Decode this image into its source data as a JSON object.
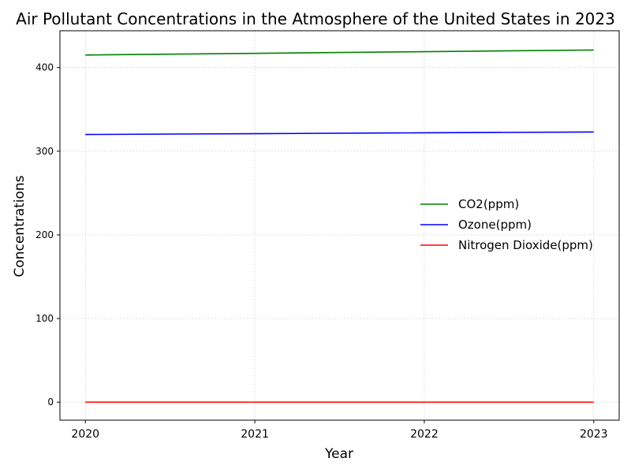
{
  "chart_data": {
    "type": "line",
    "title": "Air Pollutant Concentrations in the Atmosphere of the United States in 2023",
    "xlabel": "Year",
    "ylabel": "Concentrations",
    "x": [
      2020,
      2021,
      2022,
      2023
    ],
    "x_tick_labels": [
      "2020",
      "2021",
      "2022",
      "2023"
    ],
    "y_ticks": [
      0,
      100,
      200,
      300,
      400
    ],
    "xlim": [
      2019.85,
      2023.15
    ],
    "ylim": [
      -21.5,
      444
    ],
    "grid": true,
    "legend_position": "center-right",
    "series": [
      {
        "name": "CO2(ppm)",
        "color": "#008000",
        "values": [
          415,
          417,
          419,
          421
        ]
      },
      {
        "name": "Ozone(ppm)",
        "color": "#0000ff",
        "values": [
          320,
          321,
          322,
          323
        ]
      },
      {
        "name": "Nitrogen Dioxide(ppm)",
        "color": "#ff0000",
        "values": [
          0.05,
          0.05,
          0.05,
          0.05
        ]
      }
    ]
  }
}
